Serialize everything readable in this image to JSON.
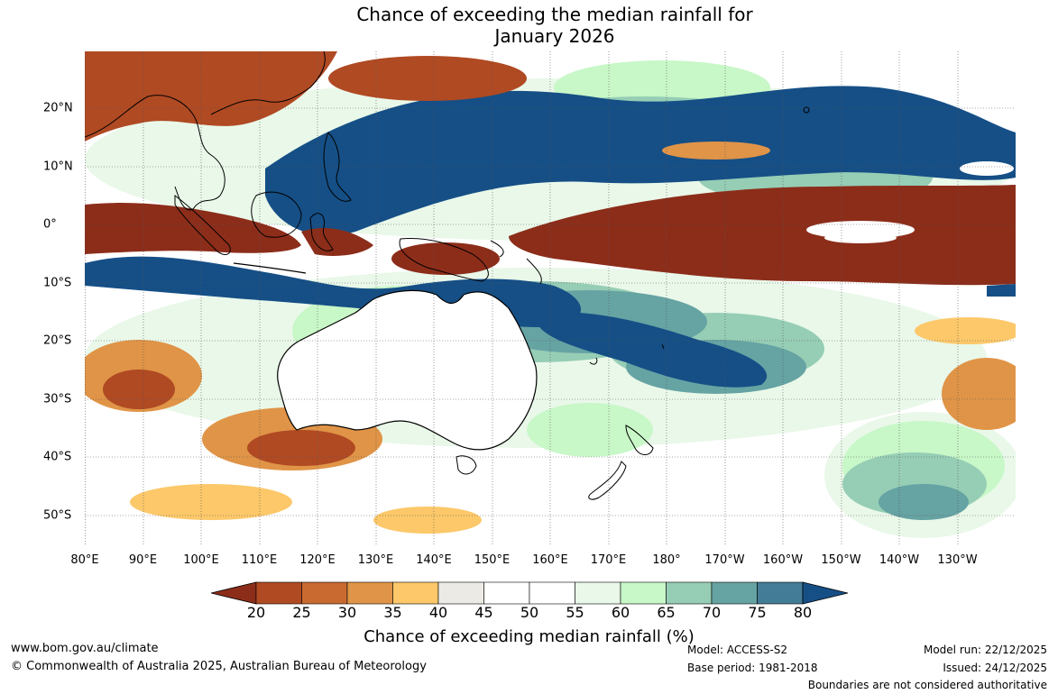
{
  "title_line1": "Chance of exceeding the median rainfall for",
  "title_line2": "January 2026",
  "map": {
    "lon_ticks": [
      "80°E",
      "90°E",
      "100°E",
      "110°E",
      "120°E",
      "130°E",
      "140°E",
      "150°E",
      "160°E",
      "170°E",
      "180°",
      "170°W",
      "160°W",
      "150°W",
      "140°W",
      "130°W"
    ],
    "lat_ticks": [
      "20°N",
      "10°N",
      "0°",
      "10°S",
      "20°S",
      "30°S",
      "40°S",
      "50°S"
    ],
    "palette": {
      "p20": "#8c2d1a",
      "p25": "#b04a23",
      "p30": "#c96a30",
      "p35": "#e09447",
      "p40": "#fcc86a",
      "p45": "#eceae4",
      "p50": "#ffffff",
      "p55": "#ffffff",
      "p60": "#e9f8e9",
      "p65": "#c8f7c8",
      "p70": "#96cdb5",
      "p75": "#66a3a3",
      "p80": "#437c96",
      "p85": "#154f86"
    }
  },
  "colorbar": {
    "ticks": [
      "20",
      "25",
      "30",
      "35",
      "40",
      "45",
      "50",
      "55",
      "60",
      "65",
      "70",
      "75",
      "80"
    ],
    "colors": [
      "#8c2d1a",
      "#b04a23",
      "#c96a30",
      "#e09447",
      "#fcc86a",
      "#eceae4",
      "#ffffff",
      "#ffffff",
      "#e9f8e9",
      "#c8f7c8",
      "#96cdb5",
      "#66a3a3",
      "#437c96",
      "#154f86"
    ],
    "title": "Chance of exceeding median rainfall (%)"
  },
  "footer": {
    "website": "www.bom.gov.au/climate",
    "copyright": "© Commonwealth of Australia 2025, Australian Bureau of Meteorology",
    "model": "Model: ACCESS-S2",
    "base_period": "Base period: 1981-2018",
    "model_run": "Model run: 22/12/2025",
    "issued": "Issued: 24/12/2025",
    "disclaimer": "Boundaries are not considered authoritative"
  }
}
